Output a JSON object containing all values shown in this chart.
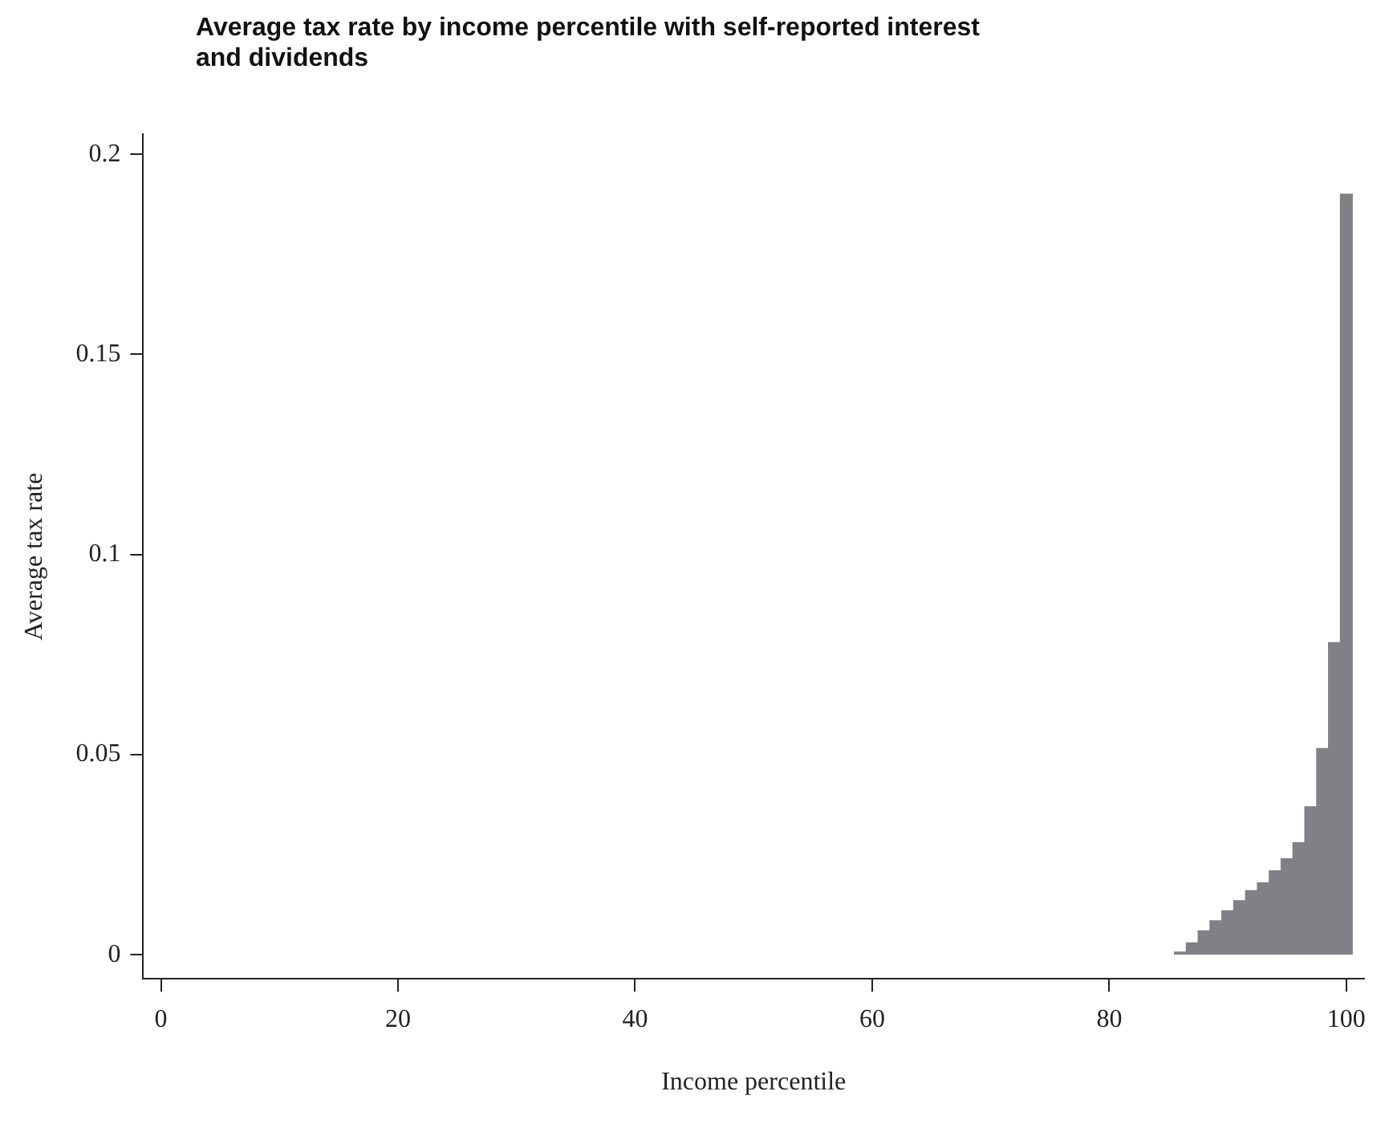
{
  "chart_data": {
    "type": "bar",
    "title": "Average tax rate by income percentile with self-reported interest and dividends",
    "xlabel": "Income percentile",
    "ylabel": "Average tax rate",
    "x": [
      86,
      87,
      88,
      89,
      90,
      91,
      92,
      93,
      94,
      95,
      96,
      97,
      98,
      99,
      100
    ],
    "values": [
      0.0007,
      0.003,
      0.006,
      0.0085,
      0.011,
      0.0135,
      0.016,
      0.018,
      0.021,
      0.024,
      0.028,
      0.037,
      0.0515,
      0.078,
      0.19
    ],
    "color": "#808086",
    "xlim": [
      -1.5,
      101.5
    ],
    "xticks": [
      0,
      20,
      40,
      60,
      80,
      100
    ],
    "ylim": [
      -0.006,
      0.205
    ],
    "yticks": [
      0,
      0.05,
      0.1,
      0.15,
      0.2
    ],
    "grid": false,
    "legend": false
  }
}
